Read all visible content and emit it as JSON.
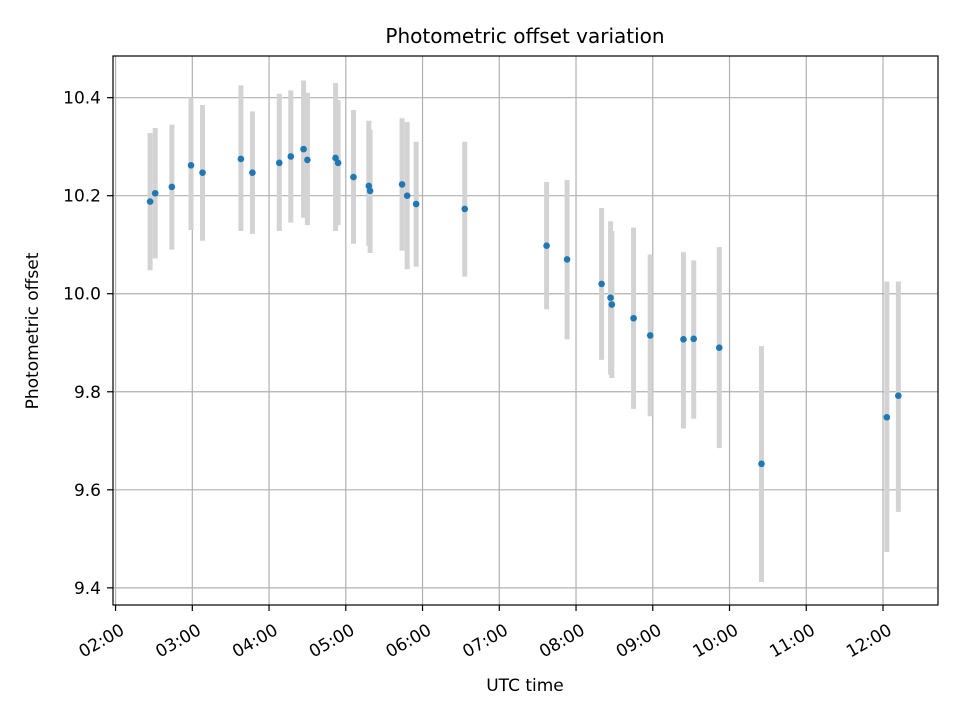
{
  "chart_data": {
    "type": "scatter",
    "title": "Photometric offset variation",
    "xlabel": "UTC time",
    "ylabel": "Photometric offset",
    "x_tick_labels": [
      "02:00",
      "03:00",
      "04:00",
      "05:00",
      "06:00",
      "07:00",
      "08:00",
      "09:00",
      "10:00",
      "11:00",
      "12:00"
    ],
    "x_ticks_hours": [
      2,
      3,
      4,
      5,
      6,
      7,
      8,
      9,
      10,
      11,
      12
    ],
    "y_ticks": [
      9.4,
      9.6,
      9.8,
      10.0,
      10.2,
      10.4
    ],
    "y_tick_labels": [
      "9.4",
      "9.6",
      "9.8",
      "10.0",
      "10.2",
      "10.4"
    ],
    "xlim": [
      "01:58",
      "12:43"
    ],
    "ylim": [
      9.365,
      10.485
    ],
    "grid": true,
    "colors": {
      "point": "#1f77b4",
      "errorbar": "#d3d3d3",
      "grid": "#b0b0b0"
    },
    "points": [
      {
        "time": "02:27",
        "y": 10.188,
        "low": 10.048,
        "high": 10.328
      },
      {
        "time": "02:31",
        "y": 10.205,
        "low": 10.072,
        "high": 10.338
      },
      {
        "time": "02:44",
        "y": 10.218,
        "low": 10.09,
        "high": 10.345
      },
      {
        "time": "02:59",
        "y": 10.262,
        "low": 10.13,
        "high": 10.4
      },
      {
        "time": "03:08",
        "y": 10.247,
        "low": 10.108,
        "high": 10.385
      },
      {
        "time": "03:38",
        "y": 10.275,
        "low": 10.128,
        "high": 10.425
      },
      {
        "time": "03:47",
        "y": 10.247,
        "low": 10.122,
        "high": 10.372
      },
      {
        "time": "04:08",
        "y": 10.267,
        "low": 10.128,
        "high": 10.408
      },
      {
        "time": "04:17",
        "y": 10.28,
        "low": 10.145,
        "high": 10.415
      },
      {
        "time": "04:27",
        "y": 10.295,
        "low": 10.155,
        "high": 10.435
      },
      {
        "time": "04:30",
        "y": 10.273,
        "low": 10.14,
        "high": 10.41
      },
      {
        "time": "04:52",
        "y": 10.277,
        "low": 10.128,
        "high": 10.43
      },
      {
        "time": "04:54",
        "y": 10.267,
        "low": 10.14,
        "high": 10.395
      },
      {
        "time": "05:06",
        "y": 10.238,
        "low": 10.102,
        "high": 10.375
      },
      {
        "time": "05:18",
        "y": 10.22,
        "low": 10.098,
        "high": 10.353
      },
      {
        "time": "05:19",
        "y": 10.21,
        "low": 10.083,
        "high": 10.335
      },
      {
        "time": "05:44",
        "y": 10.223,
        "low": 10.088,
        "high": 10.358
      },
      {
        "time": "05:48",
        "y": 10.2,
        "low": 10.05,
        "high": 10.35
      },
      {
        "time": "05:55",
        "y": 10.183,
        "low": 10.055,
        "high": 10.31
      },
      {
        "time": "06:33",
        "y": 10.173,
        "low": 10.035,
        "high": 10.31
      },
      {
        "time": "07:37",
        "y": 10.098,
        "low": 9.968,
        "high": 10.228
      },
      {
        "time": "07:53",
        "y": 10.07,
        "low": 9.907,
        "high": 10.232
      },
      {
        "time": "08:20",
        "y": 10.02,
        "low": 9.865,
        "high": 10.175
      },
      {
        "time": "08:27",
        "y": 9.992,
        "low": 9.835,
        "high": 10.148
      },
      {
        "time": "08:28",
        "y": 9.978,
        "low": 9.828,
        "high": 10.128
      },
      {
        "time": "08:45",
        "y": 9.95,
        "low": 9.765,
        "high": 10.135
      },
      {
        "time": "08:58",
        "y": 9.915,
        "low": 9.75,
        "high": 10.08
      },
      {
        "time": "09:24",
        "y": 9.907,
        "low": 9.725,
        "high": 10.085
      },
      {
        "time": "09:32",
        "y": 9.908,
        "low": 9.745,
        "high": 10.068
      },
      {
        "time": "09:52",
        "y": 9.89,
        "low": 9.685,
        "high": 10.095
      },
      {
        "time": "10:25",
        "y": 9.653,
        "low": 9.412,
        "high": 9.893
      },
      {
        "time": "12:03",
        "y": 9.748,
        "low": 9.473,
        "high": 10.025
      },
      {
        "time": "12:12",
        "y": 9.792,
        "low": 9.555,
        "high": 10.025
      }
    ]
  }
}
